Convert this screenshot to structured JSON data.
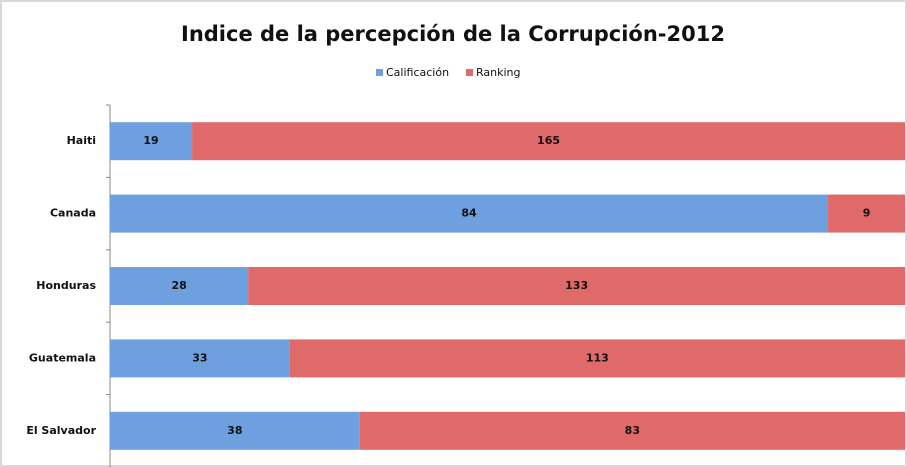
{
  "chart_data": {
    "type": "bar",
    "orientation": "horizontal",
    "stacked": "percent",
    "title": "Indice de la percepción de la Corrupción-2012",
    "categories": [
      "Haiti",
      "Canada",
      "Honduras",
      "Guatemala",
      "El Salvador"
    ],
    "series": [
      {
        "name": "Calificación",
        "color": "#6e9fdf",
        "values": [
          19,
          84,
          28,
          33,
          38
        ]
      },
      {
        "name": "Ranking",
        "color": "#e06a6a",
        "values": [
          165,
          9,
          133,
          113,
          83
        ]
      }
    ],
    "legend": "top"
  }
}
